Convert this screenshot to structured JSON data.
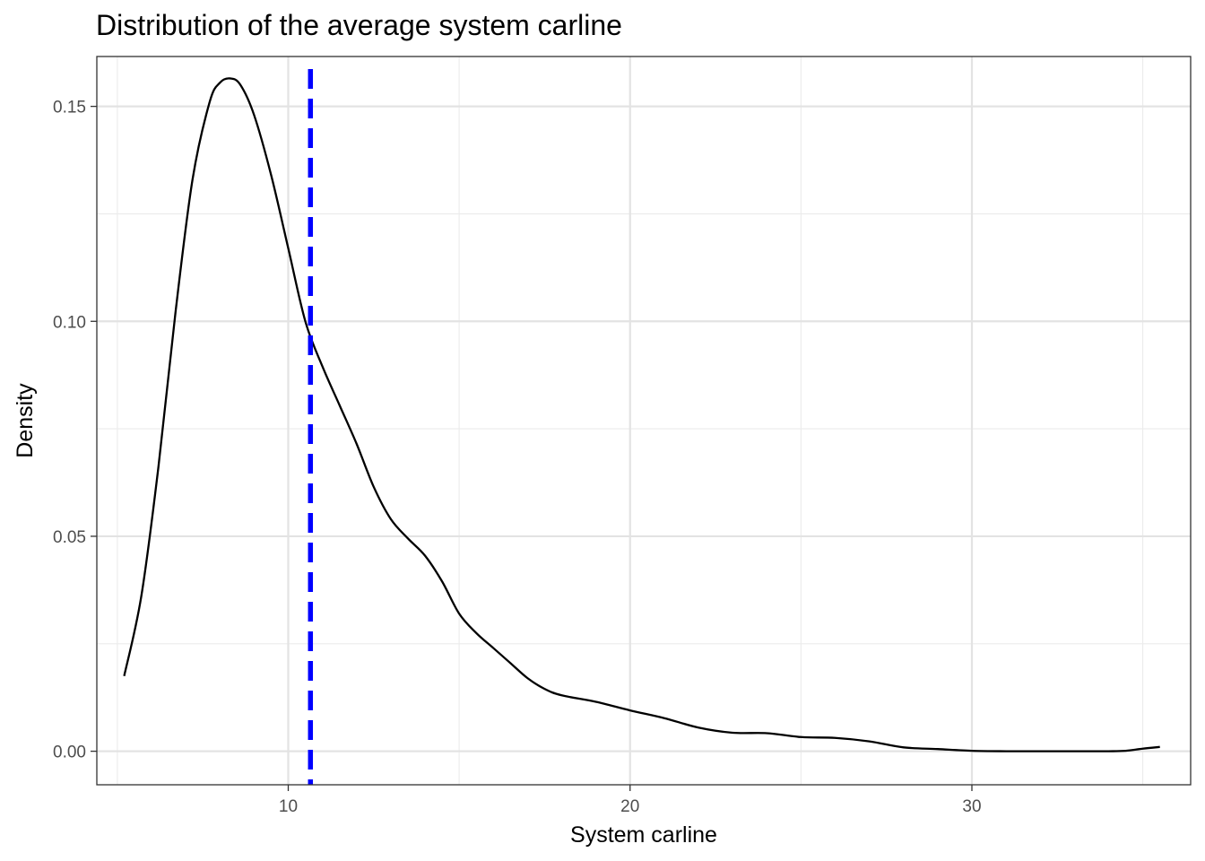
{
  "chart_data": {
    "type": "line",
    "title": "Distribution of the average system carline",
    "xlabel": "System carline",
    "ylabel": "Density",
    "xlim": [
      4.4,
      36.4
    ],
    "ylim": [
      -0.0078,
      0.1616
    ],
    "x_ticks": [
      10,
      20,
      30
    ],
    "x_tick_labels": [
      "10",
      "20",
      "30"
    ],
    "x_minor_ticks": [
      5,
      15,
      25,
      35
    ],
    "y_ticks": [
      0.0,
      0.05,
      0.1,
      0.15
    ],
    "y_tick_labels": [
      "0.00",
      "0.05",
      "0.10",
      "0.15"
    ],
    "y_minor_ticks": [
      0.025,
      0.075,
      0.125
    ],
    "grid": true,
    "series": [
      {
        "color": "#000000",
        "line_style": "solid",
        "x": [
          5.2,
          5.7,
          6.2,
          6.7,
          7.2,
          7.7,
          8.0,
          8.3,
          8.6,
          9.0,
          9.5,
          10.0,
          10.5,
          11.0,
          11.5,
          12.0,
          12.5,
          13.0,
          13.5,
          14.0,
          14.5,
          15.0,
          15.5,
          16.0,
          16.5,
          17.0,
          17.5,
          18.0,
          19.0,
          20.0,
          21.0,
          22.0,
          23.0,
          24.0,
          25.0,
          26.0,
          27.0,
          28.0,
          29.0,
          30.0,
          31.0,
          32.0,
          33.0,
          34.0,
          34.5,
          35.0,
          35.5
        ],
        "y": [
          0.0175,
          0.036,
          0.066,
          0.102,
          0.133,
          0.151,
          0.1555,
          0.1565,
          0.155,
          0.148,
          0.134,
          0.117,
          0.1,
          0.0895,
          0.0805,
          0.0715,
          0.0615,
          0.054,
          0.0495,
          0.0455,
          0.0395,
          0.032,
          0.0275,
          0.024,
          0.0205,
          0.017,
          0.0145,
          0.013,
          0.0115,
          0.0095,
          0.0077,
          0.0055,
          0.0043,
          0.0042,
          0.0033,
          0.0031,
          0.0023,
          0.0009,
          0.0005,
          0.0001,
          0.0,
          0.0,
          0.0,
          0.0,
          0.0001,
          0.0006,
          0.001
        ]
      }
    ],
    "reference_line": {
      "orientation": "vertical",
      "x": 10.65,
      "color": "#0000ff",
      "line_style": "dashed"
    }
  }
}
